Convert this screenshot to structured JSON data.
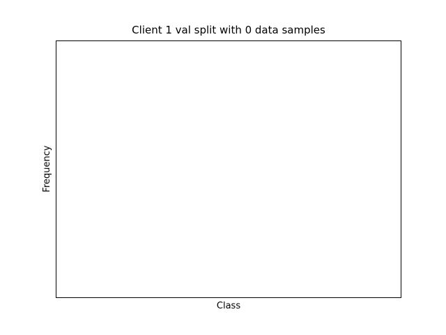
{
  "chart_data": {
    "type": "bar",
    "title": "Client 1 val split with 0 data samples",
    "xlabel": "Class",
    "ylabel": "Frequency",
    "categories": [],
    "values": [],
    "grid": false,
    "legend": null
  }
}
